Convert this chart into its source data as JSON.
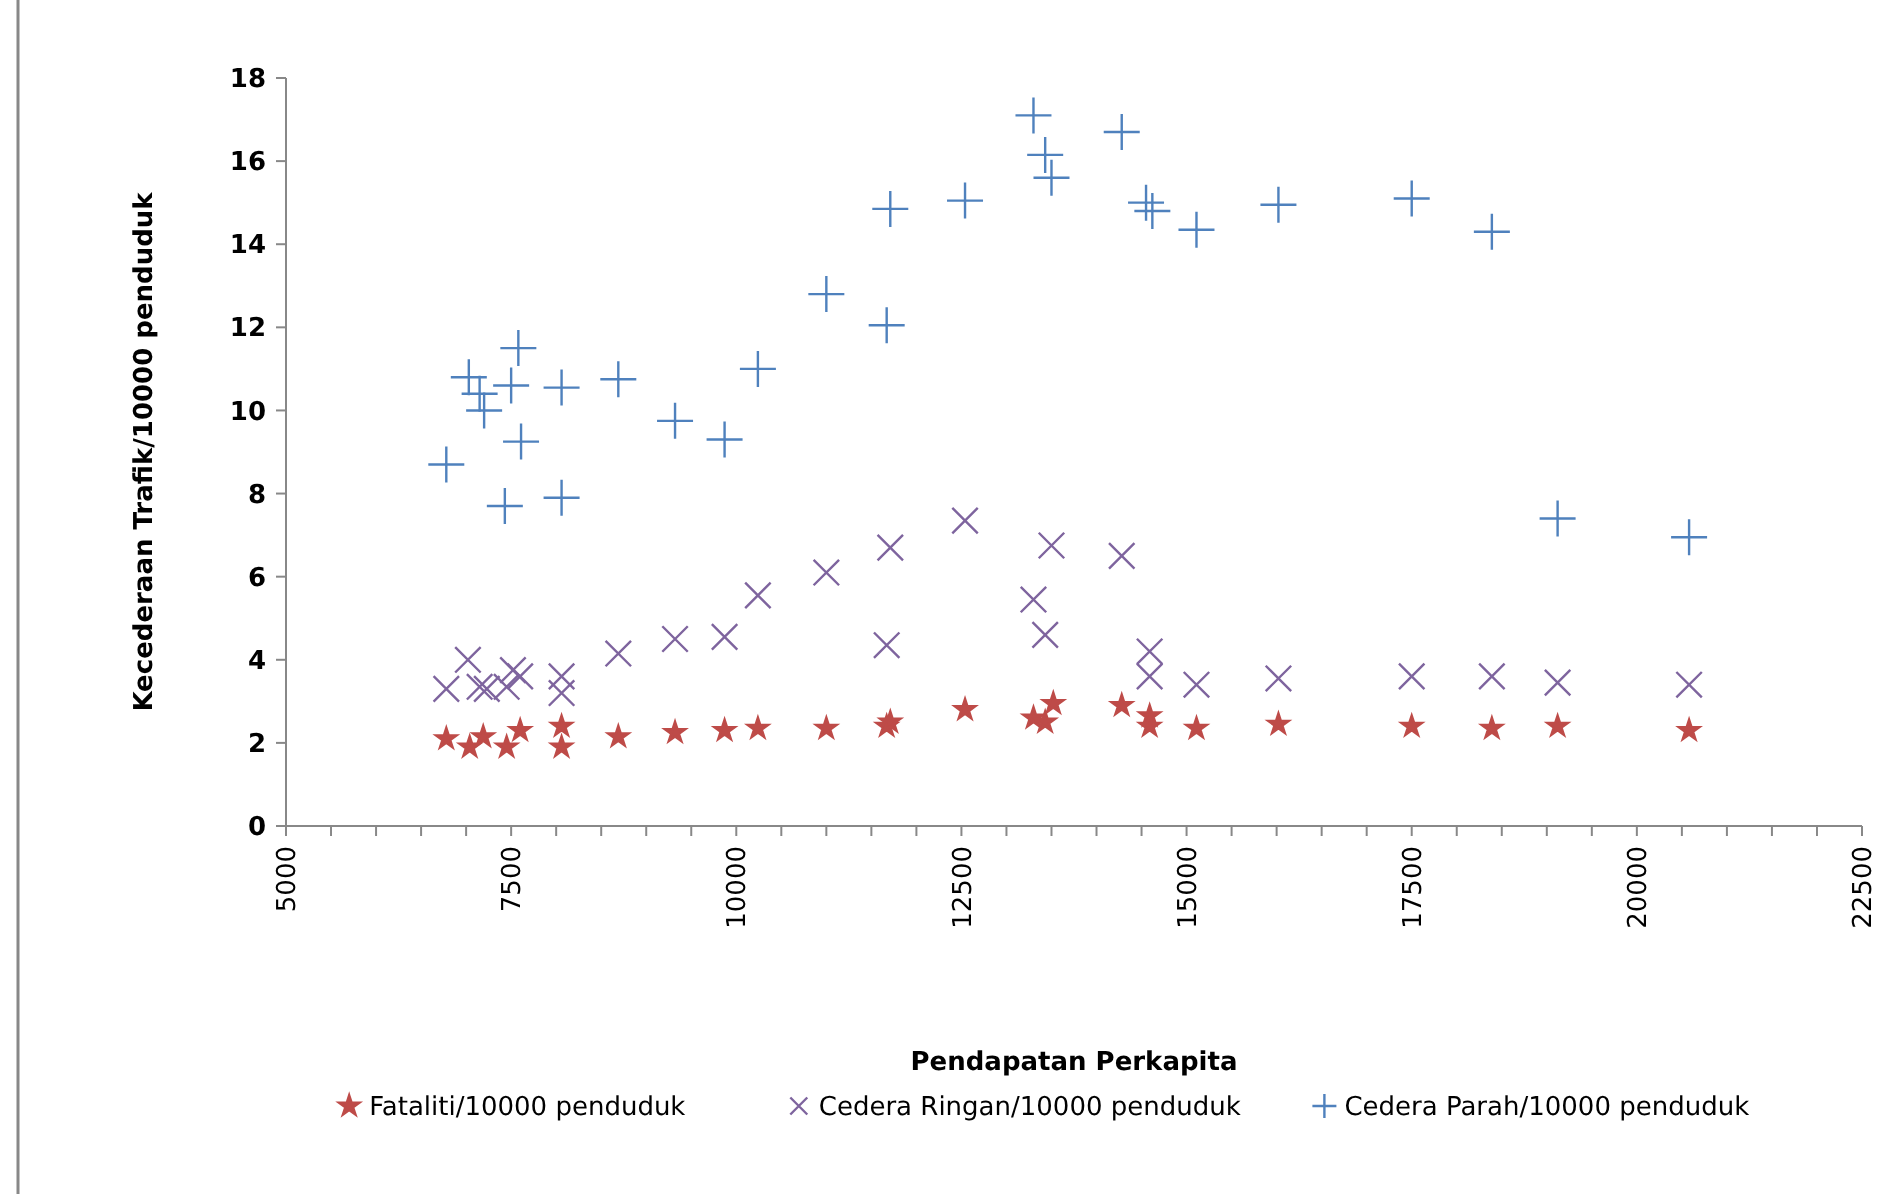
{
  "chart_data": {
    "type": "scatter",
    "xlabel": "Pendapatan Perkapita",
    "ylabel": "Kecederaan Trafik/10000 penduduk",
    "xlim": [
      5000,
      22500
    ],
    "ylim": [
      0,
      18
    ],
    "xticks": [
      5000,
      {
        "value": 5500,
        "label": null
      },
      {
        "value": 6000,
        "label": null
      },
      {
        "value": 6500,
        "label": null
      },
      {
        "value": 7000,
        "label": null
      },
      7500,
      {
        "value": 8000,
        "label": null
      },
      {
        "value": 8500,
        "label": null
      },
      {
        "value": 9000,
        "label": null
      },
      {
        "value": 9500,
        "label": null
      },
      10000,
      {
        "value": 10500,
        "label": null
      },
      {
        "value": 11000,
        "label": null
      },
      {
        "value": 11500,
        "label": null
      },
      {
        "value": 12000,
        "label": null
      },
      12500,
      {
        "value": 13000,
        "label": null
      },
      {
        "value": 13500,
        "label": null
      },
      {
        "value": 14000,
        "label": null
      },
      {
        "value": 14500,
        "label": null
      },
      15000,
      {
        "value": 15500,
        "label": null
      },
      {
        "value": 16000,
        "label": null
      },
      {
        "value": 16500,
        "label": null
      },
      {
        "value": 17000,
        "label": null
      },
      17500,
      {
        "value": 18000,
        "label": null
      },
      {
        "value": 18500,
        "label": null
      },
      {
        "value": 19000,
        "label": null
      },
      {
        "value": 19500,
        "label": null
      },
      20000,
      {
        "value": 20500,
        "label": null
      },
      {
        "value": 21000,
        "label": null
      },
      {
        "value": 21500,
        "label": null
      },
      {
        "value": 22000,
        "label": null
      },
      22500
    ],
    "yticks": [
      0,
      2,
      4,
      6,
      8,
      10,
      12,
      14,
      16,
      18
    ],
    "grid": false,
    "legend": "bottom",
    "series": [
      {
        "name": "Fataliti/10000 penduduk",
        "color": "#be4b48",
        "marker": "star",
        "x": [
          6780,
          7040,
          7190,
          7450,
          7600,
          8060,
          8060,
          8690,
          9320,
          9870,
          10240,
          11000,
          11670,
          11710,
          12540,
          13300,
          13430,
          13520,
          14280,
          14590,
          14590,
          15110,
          16020,
          17500,
          18390,
          19120,
          20580
        ],
        "values": [
          2.1,
          1.9,
          2.15,
          1.9,
          2.3,
          2.4,
          1.9,
          2.15,
          2.25,
          2.3,
          2.35,
          2.35,
          2.4,
          2.5,
          2.8,
          2.6,
          2.5,
          2.95,
          2.9,
          2.65,
          2.4,
          2.35,
          2.45,
          2.4,
          2.35,
          2.4,
          2.3
        ]
      },
      {
        "name": "Cedera Ringan/10000 penduduk",
        "color": "#7e649e",
        "marker": "cross",
        "x": [
          6780,
          7020,
          7150,
          7230,
          7450,
          7520,
          7600,
          8060,
          8060,
          8690,
          9320,
          9870,
          10240,
          11000,
          11670,
          11710,
          12540,
          13300,
          13430,
          13500,
          14280,
          14590,
          14590,
          15110,
          16020,
          17500,
          18390,
          19120,
          20580
        ],
        "values": [
          3.3,
          4.0,
          3.35,
          3.3,
          3.35,
          3.75,
          3.6,
          3.6,
          3.2,
          4.15,
          4.5,
          4.55,
          5.55,
          6.1,
          4.35,
          6.7,
          7.35,
          5.45,
          4.6,
          6.75,
          6.5,
          4.2,
          3.6,
          3.4,
          3.55,
          3.6,
          3.6,
          3.45,
          3.4
        ]
      },
      {
        "name": "Cedera Parah/10000 penduduk",
        "color": "#4f81bd",
        "marker": "plus",
        "x": [
          6780,
          7030,
          7150,
          7200,
          7430,
          7500,
          7580,
          7610,
          8060,
          8060,
          8690,
          9320,
          9870,
          10240,
          11000,
          11670,
          11710,
          12540,
          13300,
          13430,
          13500,
          14280,
          14550,
          14620,
          15110,
          16020,
          17500,
          18390,
          19120,
          20580
        ],
        "values": [
          8.7,
          10.8,
          10.4,
          10.0,
          7.7,
          10.6,
          11.5,
          9.25,
          10.55,
          7.9,
          10.75,
          9.75,
          9.3,
          11.0,
          12.8,
          12.05,
          14.85,
          15.05,
          17.1,
          16.15,
          15.6,
          16.7,
          15.0,
          14.8,
          14.35,
          14.95,
          15.1,
          14.3,
          7.4,
          6.95
        ]
      }
    ]
  }
}
